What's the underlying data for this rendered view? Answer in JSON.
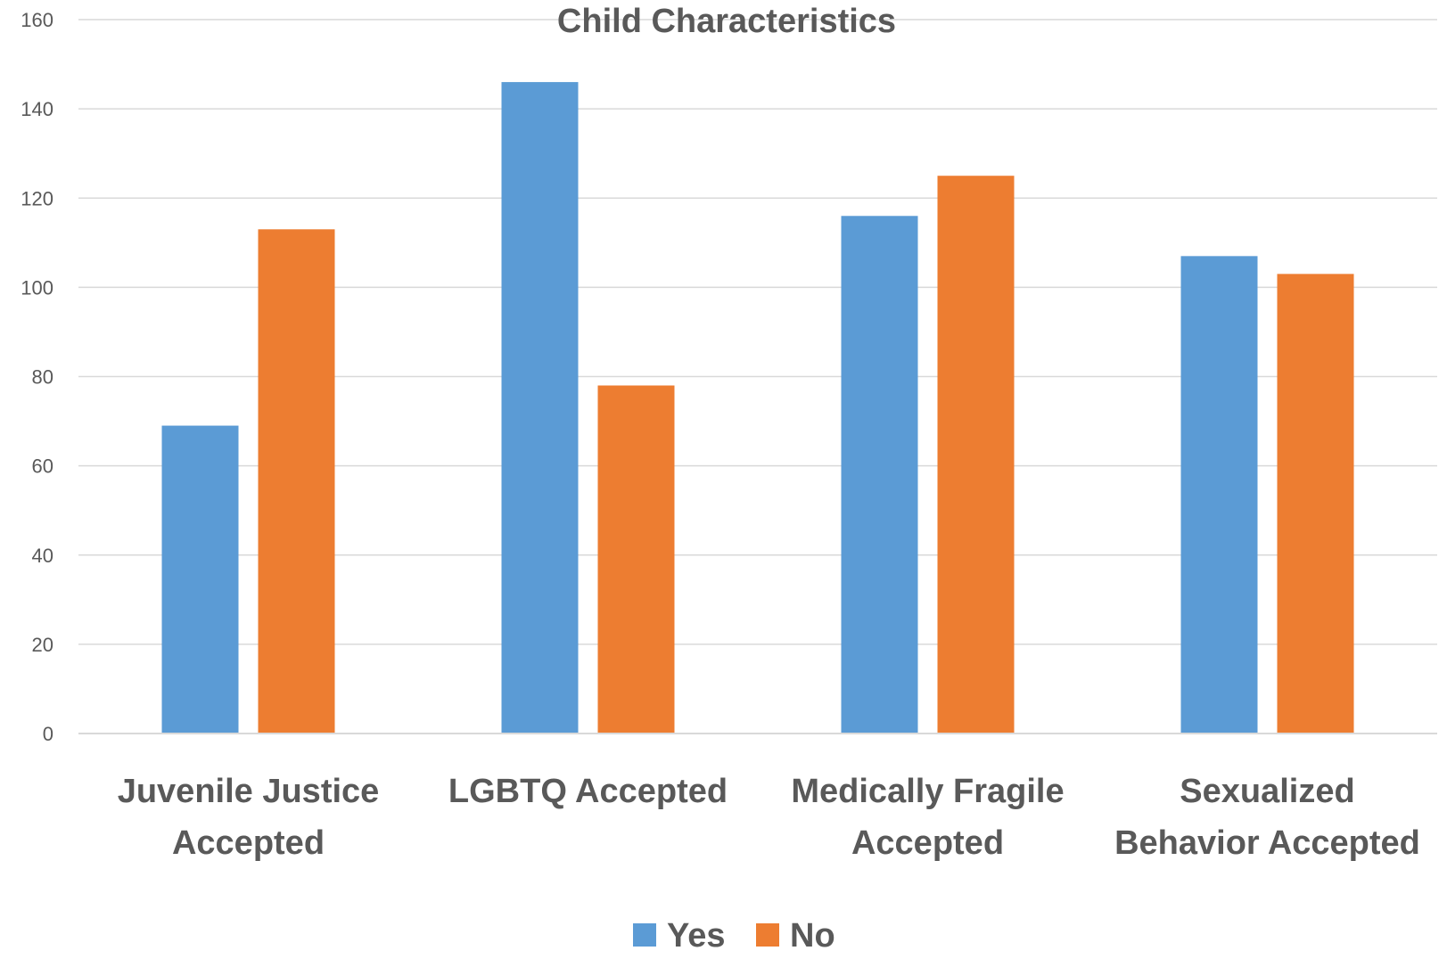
{
  "chart_data": {
    "type": "bar",
    "title": "Child Characteristics",
    "categories": [
      [
        "Juvenile Justice",
        "Accepted"
      ],
      [
        "LGBTQ Accepted"
      ],
      [
        "Medically Fragile",
        "Accepted"
      ],
      [
        "Sexualized",
        "Behavior Accepted"
      ]
    ],
    "series": [
      {
        "name": "Yes",
        "color": "#5B9BD5",
        "values": [
          69,
          146,
          116,
          107
        ]
      },
      {
        "name": "No",
        "color": "#ED7D31",
        "values": [
          113,
          78,
          125,
          103
        ]
      }
    ],
    "ylim": [
      0,
      160
    ],
    "yticks": [
      0,
      20,
      40,
      60,
      80,
      100,
      120,
      140,
      160
    ],
    "grid": true,
    "legend": "bottom"
  }
}
